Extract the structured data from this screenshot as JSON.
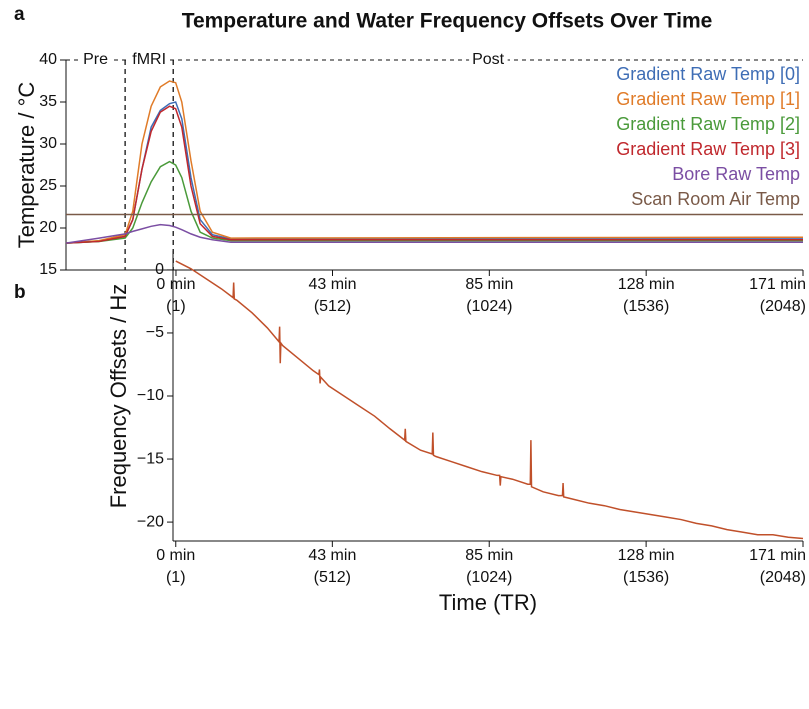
{
  "chart_data": [
    {
      "type": "line",
      "panel_label": "a",
      "title": "Temperature and Water Frequency Offsets Over Time",
      "ylabel": "Temperature / °C",
      "xlim": [
        -358,
        2048
      ],
      "ylim": [
        15,
        40
      ],
      "xticks": [
        {
          "value": 1,
          "label": "0 min"
        },
        {
          "value": 512,
          "label": "43 min"
        },
        {
          "value": 1024,
          "label": "85 min"
        },
        {
          "value": 1536,
          "label": "128 min"
        },
        {
          "value": 2048,
          "label": "171 min"
        }
      ],
      "xtick_tr_labels": [
        "(1)",
        "(512)",
        "(1024)",
        "(1536)",
        "(2048)"
      ],
      "yticks": [
        15,
        20,
        25,
        30,
        35,
        40
      ],
      "phases": [
        "Pre",
        "fMRI",
        "Post"
      ],
      "phase_boundaries": [
        -165,
        -8
      ],
      "legend": "upper right",
      "x": [
        -358,
        -250,
        -165,
        -140,
        -110,
        -80,
        -50,
        -20,
        0,
        20,
        50,
        80,
        120,
        180,
        2048
      ],
      "series": [
        {
          "name": "Gradient Raw Temp [0]",
          "color": "#3e6db5",
          "values": [
            18.2,
            18.4,
            19.0,
            21,
            27,
            32,
            34,
            34.8,
            35,
            33,
            26,
            21,
            19.2,
            18.7,
            18.7
          ]
        },
        {
          "name": "Gradient Raw Temp [1]",
          "color": "#e07b28",
          "values": [
            18.2,
            18.5,
            19.2,
            22,
            30,
            34.5,
            36.8,
            37.5,
            37.3,
            35,
            28,
            22,
            19.5,
            18.8,
            18.9
          ]
        },
        {
          "name": "Gradient Raw Temp [2]",
          "color": "#4a9a3a",
          "values": [
            18.2,
            18.4,
            18.8,
            20,
            23,
            25.5,
            27.3,
            27.9,
            27.5,
            26,
            22,
            19.5,
            18.8,
            18.5,
            18.5
          ]
        },
        {
          "name": "Gradient Raw Temp [3]",
          "color": "#c0282d",
          "values": [
            18.2,
            18.4,
            19.0,
            21,
            27,
            31.5,
            33.8,
            34.5,
            34.2,
            32,
            25,
            20.5,
            19,
            18.6,
            18.6
          ]
        },
        {
          "name": "Bore Raw Temp",
          "color": "#7b4ea3",
          "values": [
            18.2,
            18.8,
            19.3,
            19.6,
            19.9,
            20.2,
            20.4,
            20.3,
            20.1,
            19.8,
            19.3,
            18.9,
            18.6,
            18.3,
            18.3
          ]
        },
        {
          "name": "Scan Room Air Temp",
          "color": "#7a5a48",
          "values": [
            21.6,
            21.6,
            21.6,
            21.6,
            21.6,
            21.6,
            21.6,
            21.6,
            21.6,
            21.6,
            21.6,
            21.6,
            21.6,
            21.6,
            21.6
          ]
        }
      ]
    },
    {
      "type": "line",
      "panel_label": "b",
      "ylabel": "Frequency Offsets / Hz",
      "xlabel": "Time (TR)",
      "xlim": [
        -8,
        2048
      ],
      "ylim": [
        -21.5,
        1.5
      ],
      "xticks": [
        {
          "value": 1,
          "label": "0 min"
        },
        {
          "value": 512,
          "label": "43 min"
        },
        {
          "value": 1024,
          "label": "85 min"
        },
        {
          "value": 1536,
          "label": "128 min"
        },
        {
          "value": 2048,
          "label": "171 min"
        }
      ],
      "xtick_tr_labels": [
        "(1)",
        "(512)",
        "(1024)",
        "(1536)",
        "(2048)"
      ],
      "yticks": [
        {
          "value": 0,
          "label": "0"
        },
        {
          "value": -5,
          "label": "−5"
        },
        {
          "value": -10,
          "label": "−10"
        },
        {
          "value": -15,
          "label": "−15"
        },
        {
          "value": -20,
          "label": "−20"
        }
      ],
      "x": [
        1,
        50,
        100,
        150,
        188,
        190,
        192,
        200,
        250,
        300,
        338,
        340,
        342,
        344,
        350,
        400,
        450,
        468,
        470,
        472,
        474,
        500,
        550,
        600,
        650,
        700,
        748,
        750,
        752,
        800,
        838,
        840,
        842,
        850,
        900,
        950,
        1000,
        1050,
        1058,
        1060,
        1062,
        1100,
        1150,
        1158,
        1160,
        1162,
        1200,
        1250,
        1263,
        1265,
        1267,
        1300,
        1350,
        1400,
        1450,
        1500,
        1550,
        1600,
        1650,
        1700,
        1750,
        1800,
        1850,
        1900,
        1950,
        2000,
        2048
      ],
      "series": [
        {
          "color": "#c0502a",
          "values": [
            0.7,
            0.1,
            -0.7,
            -1.5,
            -2.2,
            -1.0,
            -2.3,
            -2.4,
            -3.4,
            -4.6,
            -5.7,
            -4.5,
            -7.4,
            -5.8,
            -6.0,
            -7.0,
            -8.0,
            -8.3,
            -7.9,
            -9.0,
            -8.5,
            -9.2,
            -10.0,
            -10.8,
            -11.6,
            -12.6,
            -13.5,
            -12.6,
            -13.6,
            -14.3,
            -14.6,
            -12.9,
            -14.7,
            -14.8,
            -15.2,
            -15.6,
            -16.0,
            -16.3,
            -16.3,
            -17.1,
            -16.4,
            -16.6,
            -17.0,
            -17.0,
            -13.5,
            -17.2,
            -17.6,
            -17.9,
            -17.9,
            -16.9,
            -18.0,
            -18.2,
            -18.5,
            -18.7,
            -19.0,
            -19.2,
            -19.4,
            -19.6,
            -19.8,
            -20.1,
            -20.3,
            -20.6,
            -20.8,
            -21.0,
            -21.0,
            -21.2,
            -21.3
          ]
        }
      ]
    }
  ]
}
